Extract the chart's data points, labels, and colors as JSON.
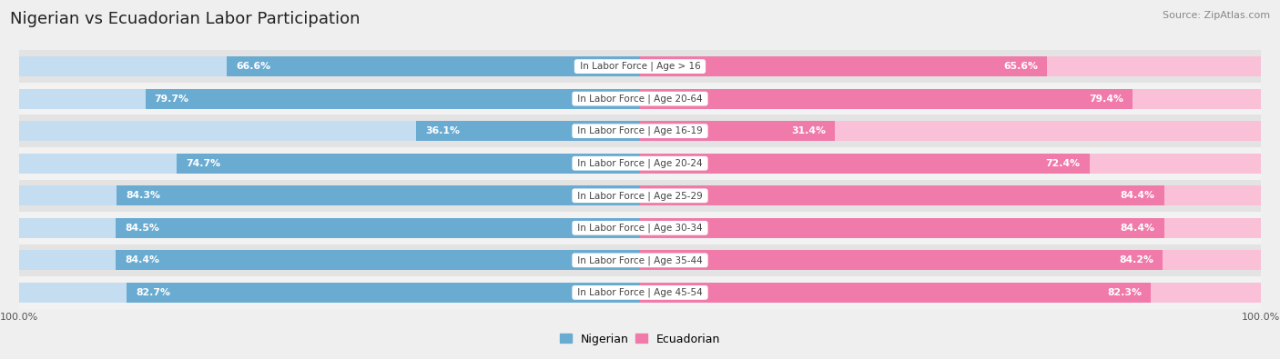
{
  "title": "Nigerian vs Ecuadorian Labor Participation",
  "source": "Source: ZipAtlas.com",
  "categories": [
    "In Labor Force | Age > 16",
    "In Labor Force | Age 20-64",
    "In Labor Force | Age 16-19",
    "In Labor Force | Age 20-24",
    "In Labor Force | Age 25-29",
    "In Labor Force | Age 30-34",
    "In Labor Force | Age 35-44",
    "In Labor Force | Age 45-54"
  ],
  "nigerian_values": [
    66.6,
    79.7,
    36.1,
    74.7,
    84.3,
    84.5,
    84.4,
    82.7
  ],
  "ecuadorian_values": [
    65.6,
    79.4,
    31.4,
    72.4,
    84.4,
    84.4,
    84.2,
    82.3
  ],
  "nigerian_color": "#6aabd2",
  "ecuadorian_color": "#f07aaa",
  "nigerian_light_color": "#c5ddf0",
  "ecuadorian_light_color": "#f9c0d8",
  "bar_height": 0.62,
  "max_value": 100.0,
  "background_color": "#efefef",
  "row_colors": [
    "#e3e3e3",
    "#f2f2f2"
  ],
  "title_fontsize": 13,
  "label_fontsize": 7.5,
  "value_fontsize": 7.8,
  "legend_fontsize": 9,
  "tick_fontsize": 8
}
